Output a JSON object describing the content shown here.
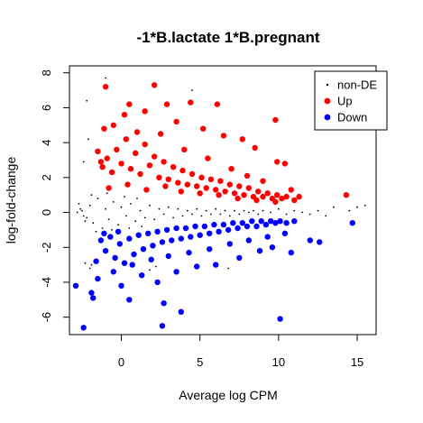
{
  "chart_data": {
    "type": "scatter",
    "title": "-1*B.lactate 1*B.pregnant",
    "xlabel": "Average log CPM",
    "ylabel": "log-fold-change",
    "xlim": [
      -3.3,
      16.2
    ],
    "ylim": [
      -7.0,
      8.4
    ],
    "xticks": [
      0,
      5,
      10,
      15
    ],
    "yticks": [
      -6,
      -4,
      -2,
      0,
      2,
      4,
      6,
      8
    ],
    "xtick_labels": [
      "0",
      "5",
      "10",
      "15"
    ],
    "ytick_labels": [
      "-6",
      "-4",
      "-2",
      "0",
      "2",
      "4",
      "6",
      "8"
    ],
    "grid": false,
    "legend_position": "top-right",
    "legend": [
      {
        "label": "non-DE",
        "color": "#000000",
        "marker": "small-dot"
      },
      {
        "label": "Up",
        "color": "#ff0000",
        "marker": "dot"
      },
      {
        "label": "Down",
        "color": "#0000ff",
        "marker": "dot"
      }
    ],
    "series": [
      {
        "name": "non-DE",
        "color": "#000000",
        "marker": "small-dot",
        "points": [
          [
            -2.5,
            0.1
          ],
          [
            -2.2,
            -0.3
          ],
          [
            -2.0,
            0.4
          ],
          [
            -1.8,
            -0.6
          ],
          [
            -1.5,
            0.8
          ],
          [
            -1.2,
            -0.9
          ],
          [
            -1.0,
            0.2
          ],
          [
            -0.8,
            -0.4
          ],
          [
            -0.5,
            0.6
          ],
          [
            -0.2,
            -0.7
          ],
          [
            0.0,
            0.3
          ],
          [
            0.3,
            -0.2
          ],
          [
            0.6,
            0.5
          ],
          [
            0.9,
            -0.5
          ],
          [
            1.2,
            0.1
          ],
          [
            1.5,
            -0.3
          ],
          [
            1.8,
            0.4
          ],
          [
            2.1,
            -0.4
          ],
          [
            2.4,
            0.2
          ],
          [
            2.7,
            -0.1
          ],
          [
            3.0,
            0.3
          ],
          [
            3.3,
            -0.3
          ],
          [
            3.6,
            0.2
          ],
          [
            3.9,
            -0.2
          ],
          [
            4.2,
            0.1
          ],
          [
            4.5,
            -0.1
          ],
          [
            4.8,
            0.2
          ],
          [
            5.1,
            -0.2
          ],
          [
            5.4,
            0.1
          ],
          [
            5.7,
            -0.1
          ],
          [
            6.0,
            0.2
          ],
          [
            6.3,
            -0.1
          ],
          [
            6.6,
            0.1
          ],
          [
            6.9,
            -0.2
          ],
          [
            7.2,
            0.1
          ],
          [
            7.5,
            -0.1
          ],
          [
            7.8,
            0.1
          ],
          [
            8.1,
            0.0
          ],
          [
            8.4,
            0.1
          ],
          [
            8.7,
            -0.1
          ],
          [
            9.0,
            0.1
          ],
          [
            9.5,
            0.0
          ],
          [
            10.0,
            0.2
          ],
          [
            10.5,
            -0.1
          ],
          [
            11.0,
            0.1
          ],
          [
            11.5,
            0.0
          ],
          [
            12.0,
            -0.1
          ],
          [
            12.5,
            0.1
          ],
          [
            13.0,
            -0.2
          ],
          [
            13.5,
            0.3
          ],
          [
            14.5,
            0.1
          ],
          [
            15.0,
            0.3
          ],
          [
            15.5,
            0.4
          ],
          [
            -2.8,
            0.0
          ],
          [
            -2.6,
            0.2
          ],
          [
            -2.4,
            -0.2
          ],
          [
            -2.7,
            0.5
          ],
          [
            -2.3,
            -0.5
          ],
          [
            -1.9,
            1.0
          ],
          [
            -1.6,
            -1.1
          ],
          [
            -0.9,
            1.1
          ],
          [
            -0.6,
            -1.0
          ],
          [
            0.2,
            0.9
          ],
          [
            0.5,
            -0.9
          ],
          [
            1.0,
            0.8
          ],
          [
            1.3,
            -0.8
          ],
          [
            -1.0,
            7.7
          ],
          [
            -2.2,
            6.4
          ],
          [
            -2.0,
            -3.2
          ],
          [
            -1.9,
            -3.0
          ],
          [
            -2.1,
            4.2
          ],
          [
            -2.3,
            -2.9
          ],
          [
            1.8,
            -3.3
          ],
          [
            2.2,
            -3.1
          ],
          [
            4.5,
            7.0
          ],
          [
            6.8,
            -3.2
          ],
          [
            -2.4,
            2.9
          ]
        ]
      },
      {
        "name": "Up",
        "color": "#ff0000",
        "marker": "dot",
        "points": [
          [
            -1.2,
            2.6
          ],
          [
            -0.9,
            3.1
          ],
          [
            -0.6,
            2.3
          ],
          [
            -0.3,
            3.6
          ],
          [
            0.0,
            2.8
          ],
          [
            0.3,
            4.2
          ],
          [
            0.6,
            2.5
          ],
          [
            0.9,
            3.4
          ],
          [
            1.2,
            2.2
          ],
          [
            1.5,
            3.9
          ],
          [
            1.8,
            2.7
          ],
          [
            2.1,
            3.2
          ],
          [
            2.4,
            2.0
          ],
          [
            2.7,
            2.9
          ],
          [
            3.0,
            1.9
          ],
          [
            3.3,
            2.6
          ],
          [
            3.6,
            1.7
          ],
          [
            3.9,
            2.4
          ],
          [
            4.2,
            1.6
          ],
          [
            4.5,
            2.2
          ],
          [
            4.8,
            1.5
          ],
          [
            5.1,
            2.0
          ],
          [
            5.4,
            1.4
          ],
          [
            5.7,
            1.9
          ],
          [
            6.0,
            1.3
          ],
          [
            6.3,
            1.8
          ],
          [
            6.6,
            1.2
          ],
          [
            6.9,
            1.6
          ],
          [
            7.2,
            1.1
          ],
          [
            7.5,
            1.5
          ],
          [
            7.8,
            1.0
          ],
          [
            8.1,
            1.4
          ],
          [
            8.4,
            0.9
          ],
          [
            8.7,
            1.2
          ],
          [
            9.0,
            0.9
          ],
          [
            9.3,
            1.1
          ],
          [
            9.6,
            0.8
          ],
          [
            9.9,
            1.0
          ],
          [
            10.2,
            0.8
          ],
          [
            10.5,
            0.9
          ],
          [
            11.0,
            0.7
          ],
          [
            -1.0,
            7.2
          ],
          [
            2.1,
            7.3
          ],
          [
            0.5,
            6.2
          ],
          [
            1.5,
            5.8
          ],
          [
            2.9,
            6.2
          ],
          [
            4.4,
            6.3
          ],
          [
            6.1,
            6.2
          ],
          [
            9.8,
            5.3
          ],
          [
            7.7,
            4.2
          ],
          [
            8.5,
            3.7
          ],
          [
            -0.5,
            5.0
          ],
          [
            0.2,
            5.6
          ],
          [
            3.5,
            5.2
          ],
          [
            5.2,
            4.8
          ],
          [
            6.5,
            4.4
          ],
          [
            14.3,
            1.0
          ],
          [
            9.9,
            2.9
          ],
          [
            10.4,
            2.8
          ],
          [
            -1.1,
            4.8
          ],
          [
            1.0,
            4.6
          ],
          [
            2.5,
            4.5
          ],
          [
            -1.5,
            3.5
          ],
          [
            -1.3,
            2.9
          ],
          [
            4.0,
            3.6
          ],
          [
            5.5,
            3.1
          ],
          [
            7.0,
            2.5
          ],
          [
            8.0,
            2.1
          ],
          [
            9.0,
            1.8
          ],
          [
            -0.8,
            1.4
          ],
          [
            0.4,
            1.6
          ],
          [
            1.6,
            1.3
          ],
          [
            2.8,
            1.5
          ],
          [
            3.8,
            1.2
          ],
          [
            5.0,
            1.1
          ],
          [
            6.2,
            1.0
          ],
          [
            7.4,
            0.8
          ],
          [
            8.6,
            0.7
          ],
          [
            9.8,
            0.6
          ],
          [
            11.3,
            0.9
          ],
          [
            10.8,
            1.3
          ]
        ]
      },
      {
        "name": "Down",
        "color": "#0000ff",
        "marker": "dot",
        "points": [
          [
            -1.3,
            -1.6
          ],
          [
            -1.0,
            -2.2
          ],
          [
            -0.7,
            -1.4
          ],
          [
            -0.4,
            -2.6
          ],
          [
            -0.1,
            -1.8
          ],
          [
            0.2,
            -2.9
          ],
          [
            0.5,
            -1.5
          ],
          [
            0.8,
            -2.4
          ],
          [
            1.1,
            -1.3
          ],
          [
            1.4,
            -2.1
          ],
          [
            1.7,
            -1.2
          ],
          [
            2.0,
            -1.9
          ],
          [
            2.3,
            -1.1
          ],
          [
            2.6,
            -1.7
          ],
          [
            2.9,
            -1.0
          ],
          [
            3.2,
            -1.6
          ],
          [
            3.5,
            -0.9
          ],
          [
            3.8,
            -1.5
          ],
          [
            4.1,
            -0.9
          ],
          [
            4.4,
            -1.4
          ],
          [
            4.7,
            -0.8
          ],
          [
            5.0,
            -1.3
          ],
          [
            5.3,
            -0.8
          ],
          [
            5.6,
            -1.2
          ],
          [
            5.9,
            -0.7
          ],
          [
            6.2,
            -1.1
          ],
          [
            6.5,
            -0.7
          ],
          [
            6.8,
            -1.0
          ],
          [
            7.1,
            -0.6
          ],
          [
            7.4,
            -0.9
          ],
          [
            7.7,
            -0.6
          ],
          [
            8.0,
            -0.8
          ],
          [
            8.3,
            -0.5
          ],
          [
            8.6,
            -0.8
          ],
          [
            8.9,
            -0.5
          ],
          [
            9.2,
            -0.7
          ],
          [
            9.5,
            -0.5
          ],
          [
            9.8,
            -0.6
          ],
          [
            10.1,
            -0.5
          ],
          [
            10.5,
            -0.6
          ],
          [
            11.0,
            -0.5
          ],
          [
            -2.4,
            -6.6
          ],
          [
            -1.9,
            -4.6
          ],
          [
            -1.8,
            -4.9
          ],
          [
            0.5,
            -5.0
          ],
          [
            2.6,
            -6.5
          ],
          [
            2.7,
            -5.2
          ],
          [
            3.8,
            -5.7
          ],
          [
            10.1,
            -6.1
          ],
          [
            12.6,
            -1.7
          ],
          [
            14.7,
            -0.6
          ],
          [
            10.8,
            -2.3
          ],
          [
            12.0,
            -1.6
          ],
          [
            -2.9,
            -4.2
          ],
          [
            -1.5,
            -3.8
          ],
          [
            0.0,
            -4.2
          ],
          [
            1.3,
            -3.6
          ],
          [
            2.3,
            -4.0
          ],
          [
            3.5,
            -3.4
          ],
          [
            4.8,
            -3.1
          ],
          [
            6.0,
            -3.0
          ],
          [
            7.5,
            -2.6
          ],
          [
            8.8,
            -2.2
          ],
          [
            9.6,
            -2.0
          ],
          [
            -0.5,
            -3.4
          ],
          [
            -1.6,
            -2.8
          ],
          [
            0.7,
            -3.0
          ],
          [
            1.9,
            -2.7
          ],
          [
            3.0,
            -2.5
          ],
          [
            4.3,
            -2.3
          ],
          [
            5.6,
            -2.1
          ],
          [
            6.9,
            -1.8
          ],
          [
            8.1,
            -1.6
          ],
          [
            9.3,
            -1.4
          ],
          [
            10.4,
            -1.2
          ],
          [
            -1.1,
            -1.2
          ],
          [
            -0.2,
            -1.1
          ]
        ]
      }
    ]
  }
}
